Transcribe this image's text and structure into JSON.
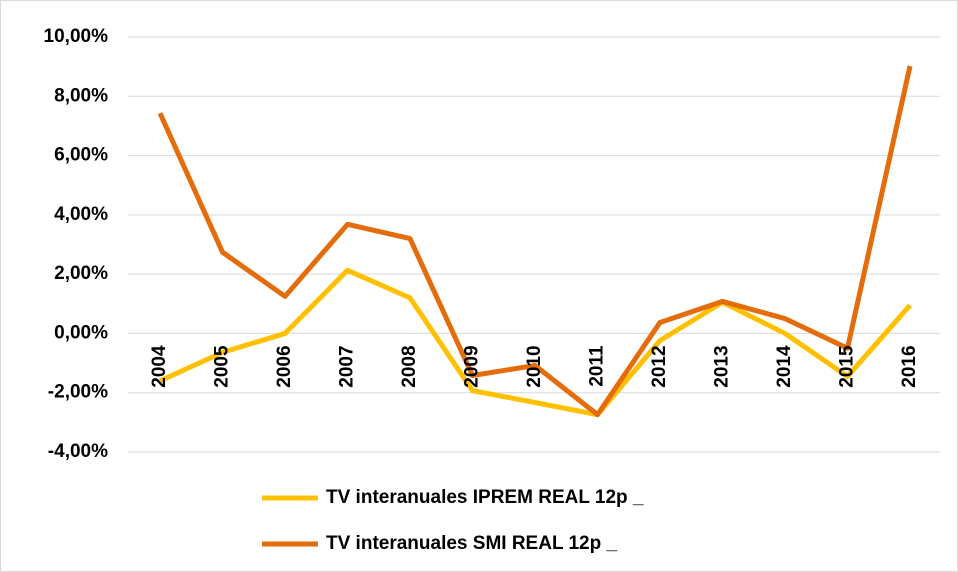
{
  "chart_data": {
    "type": "line",
    "categories": [
      "2004",
      "2005",
      "2006",
      "2007",
      "2008",
      "2009",
      "2010",
      "2011",
      "2012",
      "2013",
      "2014",
      "2015",
      "2016"
    ],
    "series": [
      {
        "name": "TV interanuales IPREM REAL 12p _",
        "color": "#ffc000",
        "values": [
          -1.6,
          -0.64,
          0,
          2.13,
          1.2,
          -1.93,
          -2.33,
          -2.74,
          -0.24,
          1.05,
          0,
          -1.45,
          0.95
        ]
      },
      {
        "name": "TV interanuales SMI REAL 12p _",
        "color": "#e46c0a",
        "values": [
          7.43,
          2.74,
          1.25,
          3.68,
          3.2,
          -1.42,
          -1.08,
          -2.74,
          0.37,
          1.08,
          0.5,
          -0.5,
          9.02
        ]
      }
    ],
    "ylim": [
      -4,
      10
    ],
    "yticks": [
      {
        "value": -4,
        "label": "-4,00%"
      },
      {
        "value": -2,
        "label": "-2,00%"
      },
      {
        "value": 0,
        "label": "0,00%"
      },
      {
        "value": 2,
        "label": "2,00%"
      },
      {
        "value": 4,
        "label": "4,00%"
      },
      {
        "value": 6,
        "label": "6,00%"
      },
      {
        "value": 8,
        "label": "8,00%"
      },
      {
        "value": 10,
        "label": "10,00%"
      }
    ],
    "grid": true
  }
}
